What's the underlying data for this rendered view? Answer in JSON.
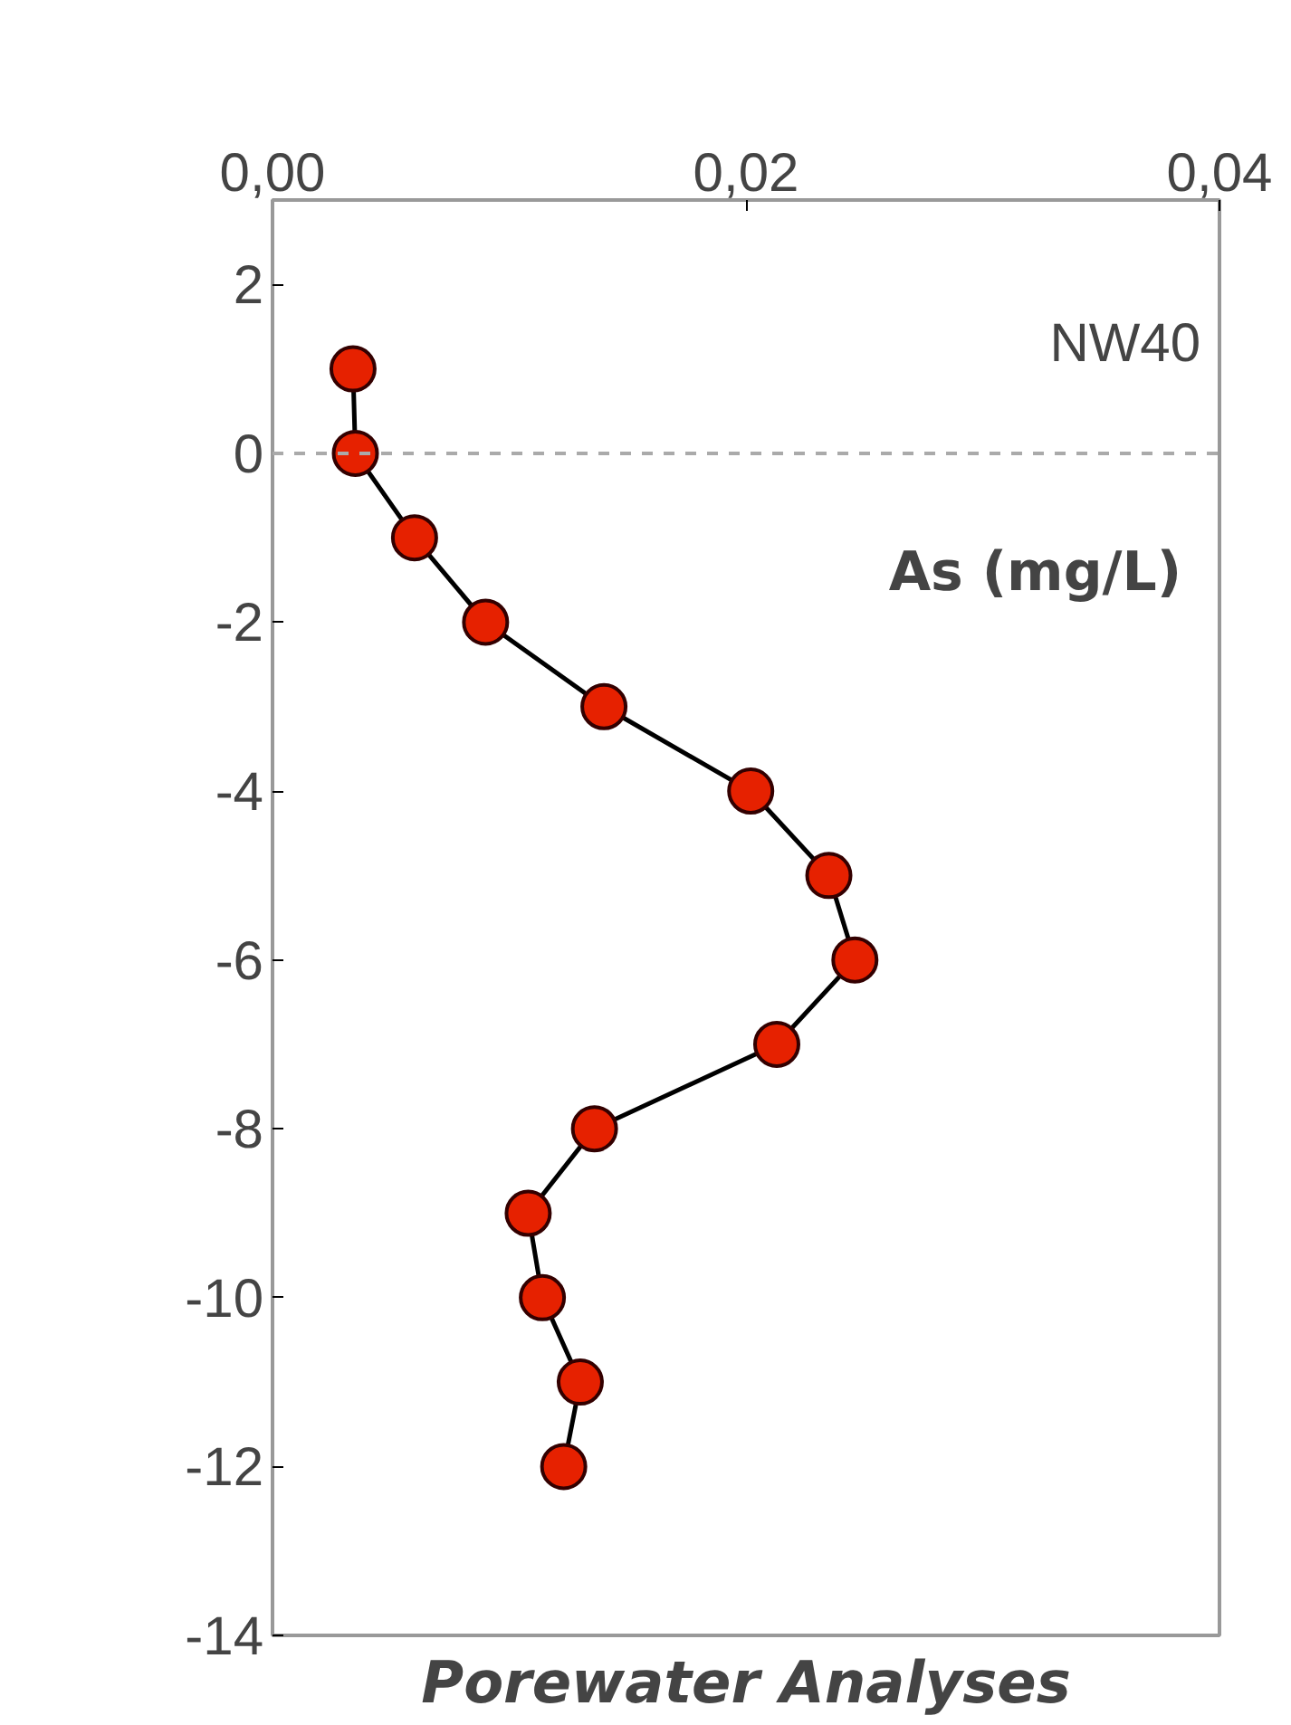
{
  "chart_data": {
    "type": "line",
    "series": [
      {
        "color": "#e62100",
        "x": [
          0.0034,
          0.0035,
          0.006,
          0.009,
          0.014,
          0.0202,
          0.0235,
          0.0246,
          0.0213,
          0.0136,
          0.0108,
          0.0114,
          0.013,
          0.0123
        ],
        "values": [
          1,
          0,
          -1,
          -2,
          -3,
          -4,
          -5,
          -6,
          -7,
          -8,
          -9,
          -10,
          -11,
          -12
        ]
      }
    ],
    "xlim": [
      0,
      0.04
    ],
    "xticks": [
      {
        "value": 0,
        "label": "0,00"
      },
      {
        "value": 0.02,
        "label": "0,02"
      },
      {
        "value": 0.04,
        "label": "0,04"
      }
    ],
    "ylim": [
      -14,
      3
    ],
    "yticks": [
      2,
      0,
      -2,
      -4,
      -6,
      -8,
      -10,
      -12,
      -14
    ],
    "marker": "circle",
    "grid": false,
    "ref_lines": [
      {
        "axis": "y",
        "value": 0,
        "color": "#aaaaaa",
        "line_style": "dashed"
      }
    ],
    "annotations": [
      "NW40",
      "As (mg/L)",
      "Porewater Analyses"
    ]
  }
}
